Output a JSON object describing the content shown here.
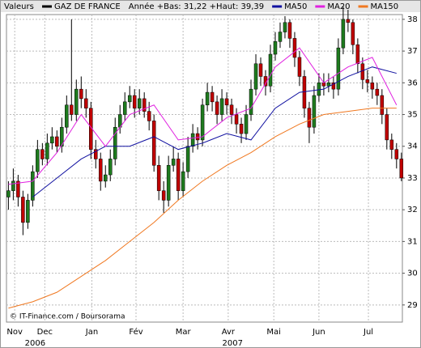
{
  "chart_data": {
    "type": "candlestick",
    "header_label": "Valeurs",
    "header_info": "Année +Bas: 31,22 +Haut: 39,39",
    "footer": "© IT-Finance.com / Boursorama",
    "ylim": [
      28.46,
      38.15
    ],
    "yticks": [
      29,
      30,
      31,
      32,
      33,
      34,
      35,
      36,
      37,
      38
    ],
    "grid": true,
    "xlim": [
      -0.4,
      81.2
    ],
    "xticks": [
      {
        "value": 1.3,
        "label": "Nov"
      },
      {
        "value": 7.5,
        "label": "Dec"
      },
      {
        "value": 17.2,
        "label": "Jan"
      },
      {
        "value": 26.3,
        "label": "Fév"
      },
      {
        "value": 36,
        "label": "Mar"
      },
      {
        "value": 45.3,
        "label": "Avr"
      },
      {
        "value": 54.7,
        "label": "Mai"
      },
      {
        "value": 64,
        "label": "Jun"
      },
      {
        "value": 74.2,
        "label": "Jul"
      }
    ],
    "x_year_labels": [
      {
        "value": 5.5,
        "label": "2006"
      },
      {
        "value": 46.2,
        "label": "2007"
      }
    ],
    "candles": {
      "name": "GAZ DE FRANCE",
      "color": "#000000",
      "up_color": "#1e7b1e",
      "down_color": "#c00000",
      "x": [
        0,
        1,
        2,
        3,
        4,
        5,
        6,
        7,
        8,
        9,
        10,
        11,
        12,
        13,
        14,
        15,
        16,
        17,
        18,
        19,
        20,
        21,
        22,
        23,
        24,
        25,
        26,
        27,
        28,
        29,
        30,
        31,
        32,
        33,
        34,
        35,
        36,
        37,
        38,
        39,
        40,
        41,
        42,
        43,
        44,
        45,
        46,
        47,
        48,
        49,
        50,
        51,
        52,
        53,
        54,
        55,
        56,
        57,
        58,
        59,
        60,
        61,
        62,
        63,
        64,
        65,
        66,
        67,
        68,
        69,
        70,
        71,
        72,
        73,
        74,
        75,
        76,
        77,
        78,
        79,
        80,
        81
      ],
      "open": [
        32.4,
        32.6,
        32.9,
        32.4,
        31.6,
        32.3,
        33.2,
        33.9,
        33.6,
        34.1,
        34.3,
        34.0,
        34.6,
        35.3,
        35.0,
        35.8,
        35.5,
        35.2,
        33.9,
        33.6,
        32.9,
        33.1,
        33.6,
        34.6,
        35.0,
        35.4,
        35.6,
        35.2,
        35.5,
        35.1,
        34.8,
        33.4,
        32.6,
        32.3,
        33.4,
        33.6,
        32.6,
        33.2,
        34.0,
        34.4,
        34.2,
        35.3,
        35.7,
        35.4,
        35.0,
        35.5,
        35.3,
        35.0,
        34.7,
        34.4,
        35.0,
        35.8,
        36.6,
        36.2,
        35.9,
        36.9,
        37.3,
        37.6,
        37.9,
        37.4,
        36.8,
        36.2,
        35.2,
        34.6,
        35.6,
        36.0,
        35.9,
        36.0,
        35.8,
        37.1,
        38.0,
        37.9,
        37.2,
        36.6,
        36.1,
        36.0,
        35.8,
        35.6,
        35.0,
        34.2,
        33.9,
        33.6
      ],
      "high": [
        32.9,
        33.3,
        33.1,
        32.6,
        32.5,
        33.4,
        34.2,
        34.1,
        34.4,
        34.6,
        34.5,
        34.9,
        35.6,
        38.0,
        36.1,
        36.2,
        35.8,
        35.4,
        34.2,
        33.8,
        33.4,
        33.9,
        34.9,
        35.3,
        35.7,
        35.9,
        35.8,
        35.8,
        35.7,
        35.4,
        35.0,
        33.7,
        32.9,
        33.7,
        34.0,
        33.8,
        33.5,
        34.3,
        34.7,
        34.6,
        35.5,
        36.0,
        35.9,
        35.6,
        35.8,
        35.7,
        35.5,
        35.2,
        34.9,
        35.3,
        36.1,
        36.9,
        36.8,
        36.4,
        37.2,
        37.6,
        37.9,
        38.1,
        38.0,
        37.6,
        37.0,
        36.4,
        35.4,
        35.9,
        36.3,
        36.3,
        36.3,
        36.2,
        37.4,
        38.4,
        38.3,
        38.0,
        37.4,
        36.8,
        36.4,
        36.2,
        36.0,
        35.8,
        35.2,
        34.4,
        34.1,
        33.8
      ],
      "low": [
        32.0,
        32.3,
        32.1,
        31.2,
        31.4,
        32.1,
        33.0,
        33.4,
        33.4,
        33.9,
        33.8,
        33.8,
        34.4,
        34.8,
        34.8,
        35.2,
        34.9,
        33.6,
        33.3,
        32.6,
        32.7,
        32.9,
        33.4,
        34.4,
        34.8,
        35.2,
        34.9,
        35.0,
        34.9,
        34.5,
        33.2,
        32.3,
        31.9,
        32.1,
        33.2,
        32.3,
        32.4,
        33.0,
        33.8,
        33.9,
        34.0,
        35.1,
        35.1,
        34.7,
        34.8,
        35.0,
        34.7,
        34.4,
        34.1,
        34.2,
        34.8,
        35.6,
        35.9,
        35.6,
        35.7,
        36.7,
        37.1,
        37.4,
        37.1,
        36.5,
        35.9,
        34.9,
        34.1,
        34.4,
        35.4,
        35.6,
        35.7,
        35.5,
        35.6,
        36.9,
        37.6,
        36.9,
        36.3,
        35.8,
        35.7,
        35.5,
        35.3,
        34.7,
        33.9,
        33.6,
        33.3,
        32.9
      ],
      "close": [
        32.6,
        32.9,
        32.4,
        31.6,
        32.3,
        33.2,
        33.9,
        33.6,
        34.1,
        34.3,
        34.0,
        34.6,
        35.3,
        35.0,
        35.8,
        35.5,
        35.2,
        33.9,
        33.6,
        32.9,
        33.1,
        33.6,
        34.6,
        35.0,
        35.4,
        35.6,
        35.2,
        35.5,
        35.1,
        34.8,
        33.4,
        32.6,
        32.3,
        33.4,
        33.6,
        32.6,
        33.2,
        34.0,
        34.4,
        34.2,
        35.3,
        35.7,
        35.4,
        35.0,
        35.5,
        35.3,
        35.0,
        34.7,
        34.4,
        35.0,
        35.8,
        36.6,
        36.2,
        35.9,
        36.9,
        37.3,
        37.6,
        37.9,
        37.4,
        36.8,
        36.2,
        35.2,
        34.6,
        35.6,
        36.0,
        35.9,
        36.0,
        35.8,
        37.1,
        38.0,
        37.9,
        37.2,
        36.6,
        36.1,
        36.0,
        35.8,
        35.6,
        35.0,
        34.2,
        33.9,
        33.6,
        33.0
      ]
    },
    "series": [
      {
        "name": "MA50",
        "color": "#1010a0",
        "x": [
          0,
          5,
          10,
          15,
          20,
          25,
          30,
          35,
          40,
          45,
          50,
          55,
          60,
          65,
          70,
          75,
          80
        ],
        "values": [
          null,
          32.4,
          33.0,
          33.6,
          34.0,
          34.0,
          34.3,
          33.9,
          34.1,
          34.4,
          34.2,
          35.2,
          35.7,
          35.8,
          36.2,
          36.5,
          36.3
        ]
      },
      {
        "name": "MA20",
        "color": "#e020e0",
        "x": [
          0,
          5,
          10,
          15,
          20,
          25,
          30,
          35,
          40,
          45,
          50,
          55,
          60,
          65,
          70,
          75,
          80
        ],
        "values": [
          32.8,
          32.9,
          33.8,
          35.0,
          34.0,
          35.0,
          35.3,
          34.2,
          34.3,
          34.9,
          35.2,
          36.5,
          37.1,
          36.0,
          36.5,
          36.8,
          35.3
        ]
      },
      {
        "name": "MA150",
        "color": "#f07820",
        "x": [
          0,
          5,
          10,
          15,
          20,
          25,
          30,
          35,
          40,
          45,
          50,
          55,
          60,
          65,
          70,
          75,
          80
        ],
        "values": [
          28.9,
          29.1,
          29.4,
          29.9,
          30.4,
          31.0,
          31.6,
          32.3,
          32.9,
          33.4,
          33.8,
          34.3,
          34.7,
          35.0,
          35.1,
          35.2,
          35.2
        ]
      }
    ]
  }
}
